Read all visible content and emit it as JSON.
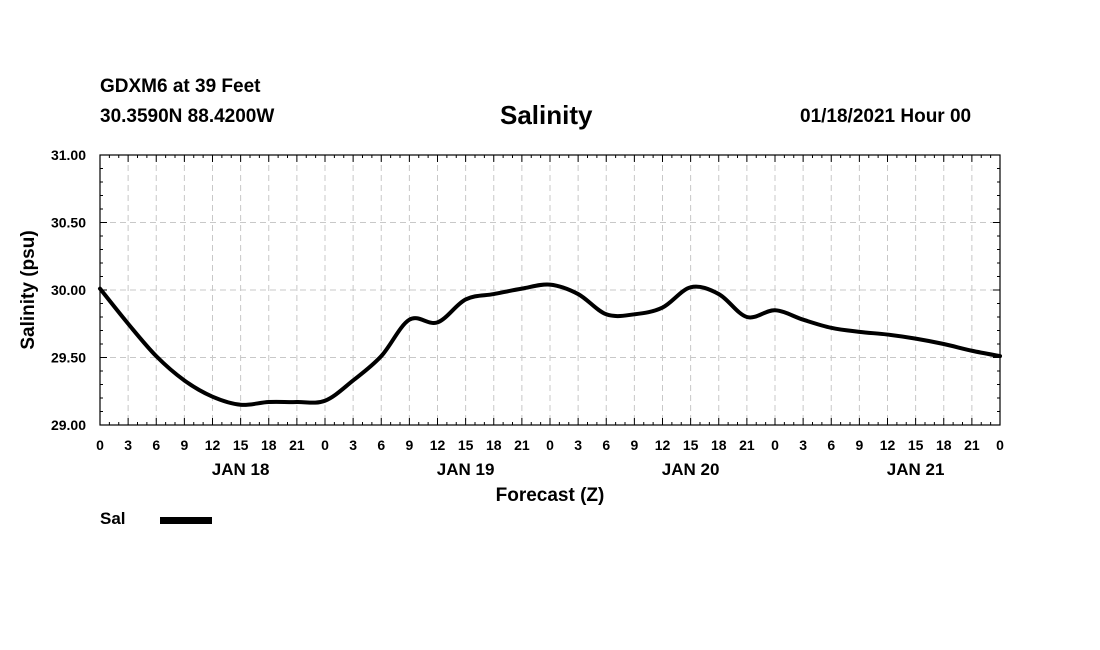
{
  "header": {
    "station": "GDXM6 at 39 Feet",
    "coords": "30.3590N 88.4200W",
    "title": "Salinity",
    "datetime": "01/18/2021 Hour 00"
  },
  "legend": {
    "label": "Sal",
    "color": "#000000"
  },
  "chart_data": {
    "type": "line",
    "title": "Salinity",
    "xlabel": "Forecast (Z)",
    "ylabel": "Salinity (psu)",
    "ylim": [
      29.0,
      31.0
    ],
    "xlim": [
      0,
      96
    ],
    "grid": true,
    "legend_position": "bottom-left",
    "yticks": [
      "29.00",
      "29.50",
      "30.00",
      "30.50",
      "31.00"
    ],
    "ytick_values": [
      29.0,
      29.5,
      30.0,
      30.5,
      31.0
    ],
    "xtick_labels": [
      "0",
      "3",
      "6",
      "9",
      "12",
      "15",
      "18",
      "21",
      "0",
      "3",
      "6",
      "9",
      "12",
      "15",
      "18",
      "21",
      "0",
      "3",
      "6",
      "9",
      "12",
      "15",
      "18",
      "21",
      "0",
      "3",
      "6",
      "9",
      "12",
      "15",
      "18",
      "21",
      "0"
    ],
    "day_labels": [
      {
        "label": "JAN 18",
        "hour": 15
      },
      {
        "label": "JAN 19",
        "hour": 39
      },
      {
        "label": "JAN 20",
        "hour": 63
      },
      {
        "label": "JAN 21",
        "hour": 87
      }
    ],
    "series": [
      {
        "name": "Sal",
        "color": "#000000",
        "x": [
          0,
          3,
          6,
          9,
          12,
          15,
          18,
          21,
          24,
          27,
          30,
          33,
          36,
          39,
          42,
          45,
          48,
          51,
          54,
          57,
          60,
          63,
          66,
          69,
          72,
          75,
          78,
          81,
          84,
          87,
          90,
          93,
          96
        ],
        "y": [
          30.01,
          29.75,
          29.51,
          29.33,
          29.21,
          29.15,
          29.17,
          29.17,
          29.18,
          29.33,
          29.51,
          29.78,
          29.76,
          29.93,
          29.97,
          30.01,
          30.04,
          29.97,
          29.82,
          29.82,
          29.87,
          30.02,
          29.97,
          29.8,
          29.85,
          29.78,
          29.72,
          29.69,
          29.67,
          29.64,
          29.6,
          29.55,
          29.51
        ]
      }
    ]
  }
}
